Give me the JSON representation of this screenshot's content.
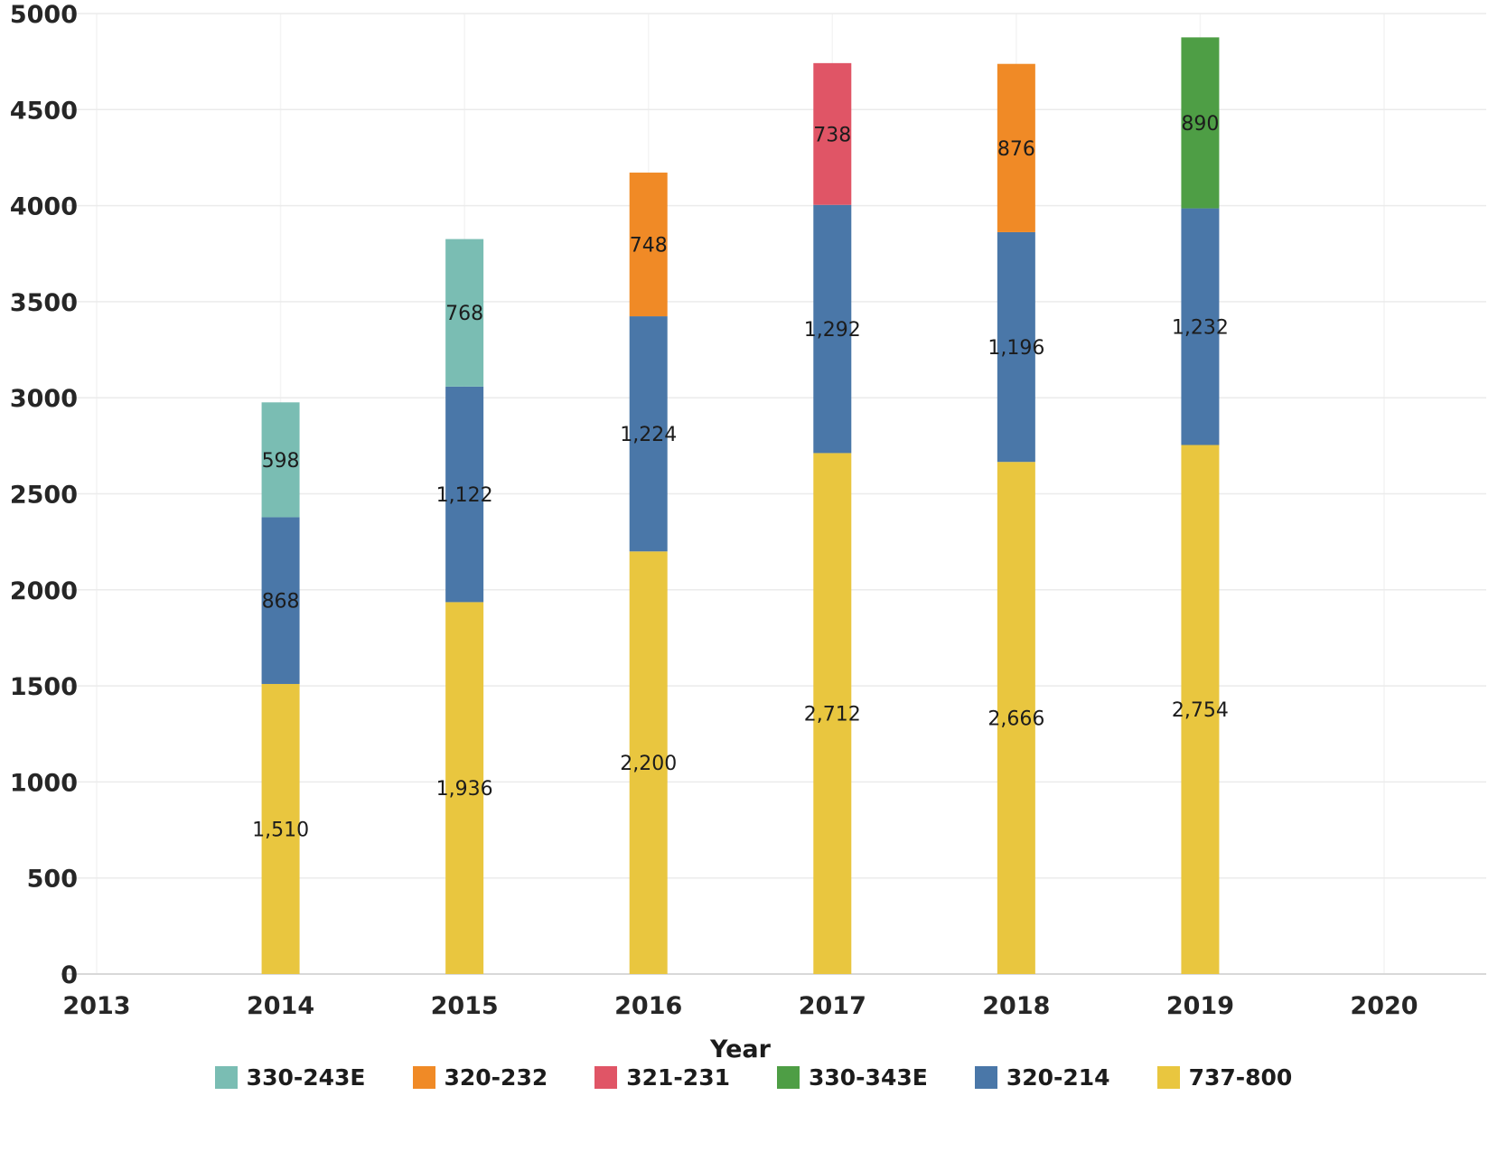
{
  "chart_data": {
    "type": "bar",
    "stacked": true,
    "xlabel": "Year",
    "ylabel": "",
    "xlim": [
      2013,
      2020
    ],
    "ylim": [
      0,
      5000
    ],
    "x_axis_ticks": [
      "2013",
      "2014",
      "2015",
      "2016",
      "2017",
      "2018",
      "2019",
      "2020"
    ],
    "y_axis_ticks": [
      0,
      500,
      1000,
      1500,
      2000,
      2500,
      3000,
      3500,
      4000,
      4500,
      5000
    ],
    "grid": "on",
    "legend_position": "bottom",
    "bar_value_labels": true,
    "categories": [
      "2014",
      "2015",
      "2016",
      "2017",
      "2018",
      "2019"
    ],
    "series": [
      {
        "name": "737-800",
        "color": "#e9c63f",
        "values": [
          1510,
          1936,
          2200,
          2712,
          2666,
          2754
        ]
      },
      {
        "name": "320-214",
        "color": "#4a77a8",
        "values": [
          868,
          1122,
          1224,
          1292,
          1196,
          1232
        ]
      },
      {
        "name": "330-243E",
        "color": "#7abdb3",
        "values": [
          598,
          768,
          0,
          0,
          0,
          0
        ]
      },
      {
        "name": "320-232",
        "color": "#f08a26",
        "values": [
          0,
          0,
          748,
          0,
          876,
          0
        ]
      },
      {
        "name": "321-231",
        "color": "#e05566",
        "values": [
          0,
          0,
          0,
          738,
          0,
          0
        ]
      },
      {
        "name": "330-343E",
        "color": "#4e9e45",
        "values": [
          0,
          0,
          0,
          0,
          0,
          890
        ]
      }
    ],
    "legend": [
      "330-243E",
      "320-232",
      "321-231",
      "330-343E",
      "320-214",
      "737-800"
    ]
  },
  "colors": {
    "background": "#ffffff",
    "grid_horizontal": "#ebebeb",
    "grid_vertical": "#f4f4f4",
    "axis_line": "#d8d8d8",
    "axis_text": "#262626",
    "bar_label_text": "#1c1c1c"
  }
}
